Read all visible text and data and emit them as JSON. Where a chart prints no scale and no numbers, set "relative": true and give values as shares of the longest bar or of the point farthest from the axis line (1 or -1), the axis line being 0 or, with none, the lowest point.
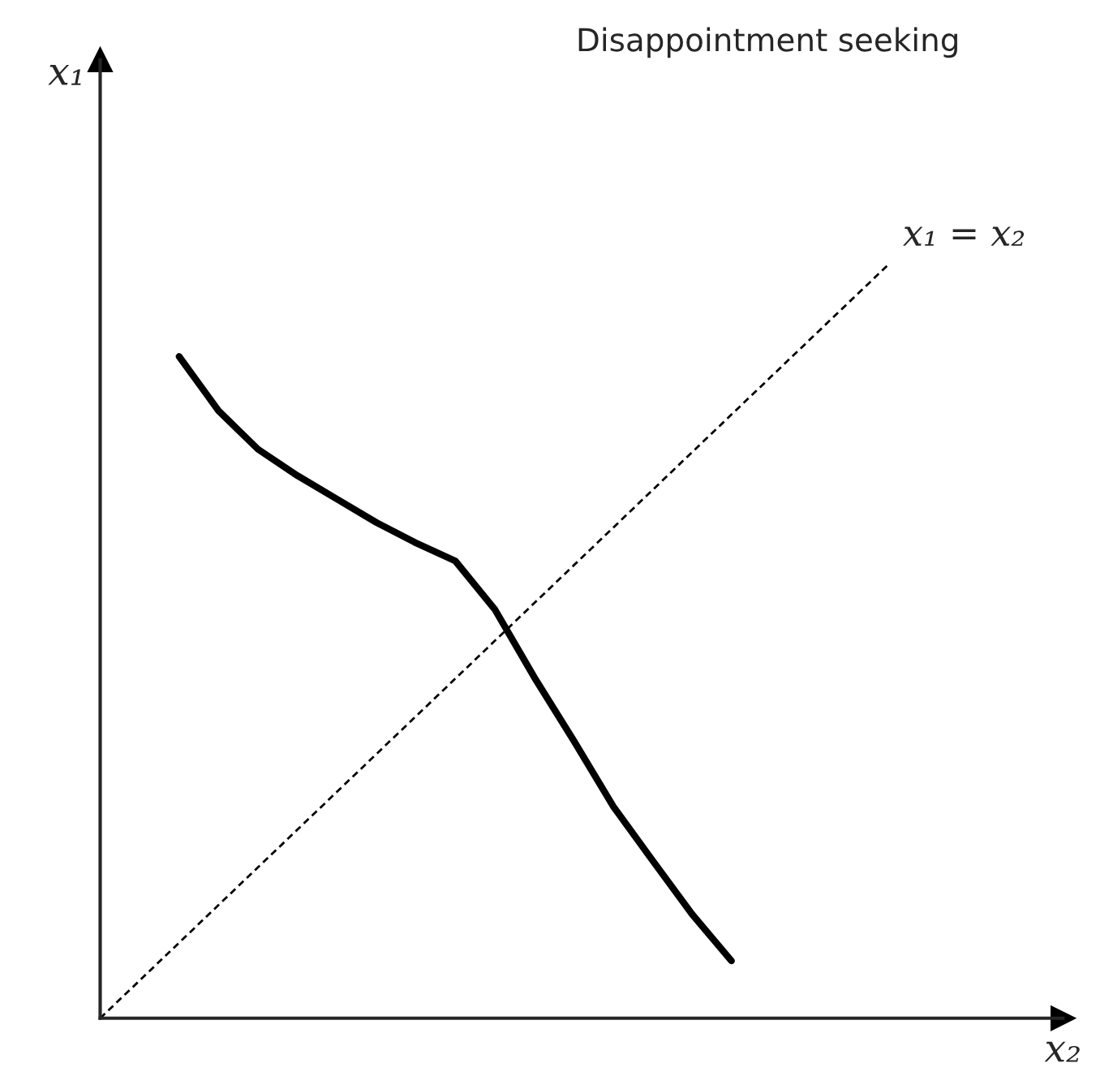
{
  "chart_data": {
    "type": "line",
    "title": "Disappointment seeking",
    "xlabel": "x₂",
    "ylabel": "x₁",
    "relative": true,
    "legend": false,
    "categories": [
      null,
      null,
      null,
      null,
      null,
      null,
      null,
      null,
      null,
      null,
      null,
      null,
      null,
      null,
      null,
      null,
      null,
      null,
      null,
      null,
      null
    ],
    "series": [
      {
        "color": "#000000",
        "line_style": "solid",
        "values": [
          null,
          null,
          0.877,
          0.805,
          0.754,
          0.719,
          0.688,
          0.657,
          0.63,
          0.606,
          0.542,
          0.452,
          0.368,
          0.281,
          0.209,
          0.138,
          0.076,
          null,
          null,
          null,
          null
        ]
      },
      {
        "color": "#000000",
        "line_style": "dashed",
        "values": [
          0,
          0.05,
          0.1,
          0.15,
          0.2,
          0.25,
          0.3,
          0.35,
          0.4,
          0.45,
          0.5,
          0.55,
          0.6,
          0.65,
          0.7,
          0.75,
          0.8,
          0.85,
          0.9,
          0.95,
          1.0
        ]
      }
    ],
    "annotations": [
      "x₁ = x₂"
    ]
  }
}
